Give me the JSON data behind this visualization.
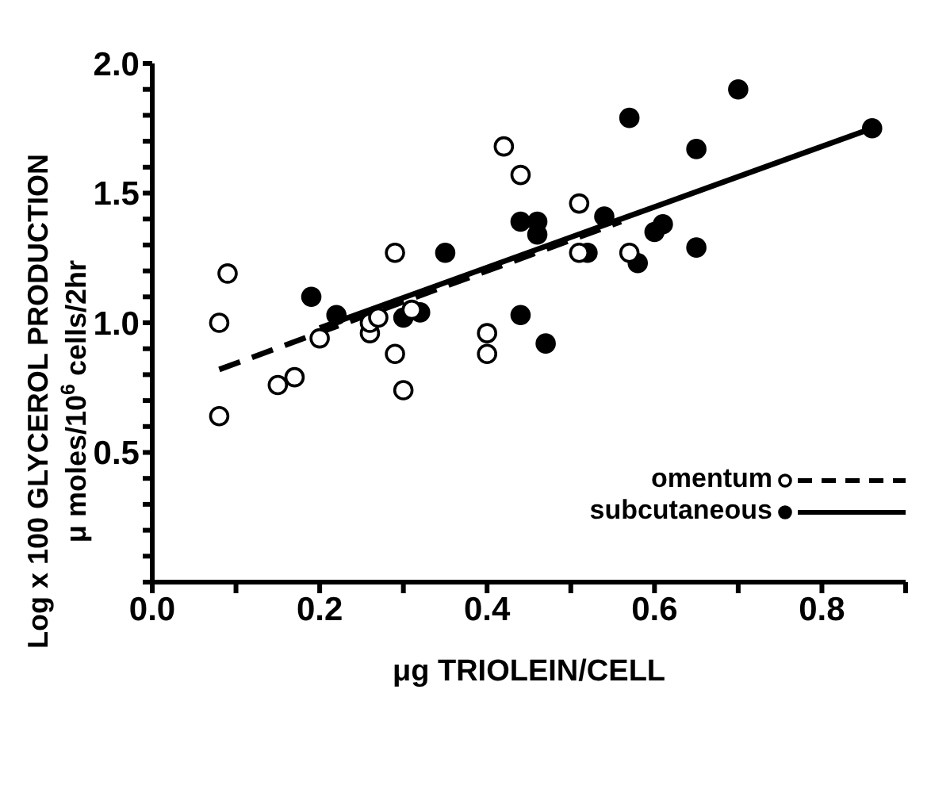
{
  "chart_data": {
    "type": "scatter",
    "xlabel": "μg  TRIOLEIN/CELL",
    "ylabel": "Log x 100  GLYCEROL  PRODUCTION\nμ moles/10$^{6}$ cells/2hr",
    "xlim": [
      0,
      0.9
    ],
    "xticks": [
      {
        "value": 0,
        "label": "0.0"
      },
      {
        "value": 0.1,
        "label": null
      },
      0.2,
      {
        "value": 0.3,
        "label": null
      },
      0.4,
      {
        "value": 0.5,
        "label": null
      },
      0.6,
      {
        "value": 0.7,
        "label": null
      },
      0.8,
      {
        "value": 0.9,
        "label": null
      }
    ],
    "ylim": [
      0,
      2
    ],
    "yticks": [
      {
        "value": 0,
        "label": null
      },
      {
        "value": 0.1,
        "label": null
      },
      {
        "value": 0.2,
        "label": null
      },
      {
        "value": 0.3,
        "label": null
      },
      {
        "value": 0.4,
        "label": null
      },
      0.5,
      {
        "value": 0.6,
        "label": null
      },
      {
        "value": 0.7,
        "label": null
      },
      {
        "value": 0.8,
        "label": null
      },
      {
        "value": 0.9,
        "label": null
      },
      {
        "value": 1,
        "label": "1.0"
      },
      {
        "value": 1.1,
        "label": null
      },
      {
        "value": 1.2,
        "label": null
      },
      {
        "value": 1.3,
        "label": null
      },
      {
        "value": 1.4,
        "label": null
      },
      1.5,
      {
        "value": 1.6,
        "label": null
      },
      {
        "value": 1.7,
        "label": null
      },
      {
        "value": 1.8,
        "label": null
      },
      {
        "value": 1.9,
        "label": null
      },
      {
        "value": 2,
        "label": "2.0"
      }
    ],
    "legend": "bottom right",
    "series": [
      {
        "name": "omentum",
        "marker": "circle",
        "color": "#ffffff",
        "x": [
          0.08,
          0.09,
          0.08,
          0.15,
          0.17,
          0.2,
          0.26,
          0.26,
          0.27,
          0.29,
          0.31,
          0.29,
          0.3,
          0.4,
          0.4,
          0.42,
          0.44,
          0.51,
          0.51,
          0.57
        ],
        "values": [
          1.0,
          1.19,
          0.64,
          0.76,
          0.79,
          0.94,
          0.96,
          1.0,
          1.02,
          1.27,
          1.05,
          0.88,
          0.74,
          0.96,
          0.88,
          1.68,
          1.57,
          1.46,
          1.27,
          1.27
        ]
      },
      {
        "type": "line",
        "line_style": "dashed",
        "color": "#000000",
        "x": [
          0.08,
          0.56
        ],
        "values": [
          0.82,
          1.39
        ]
      },
      {
        "name": "subcutaneous",
        "marker": "circle",
        "color": "#000000",
        "x": [
          0.19,
          0.22,
          0.3,
          0.32,
          0.35,
          0.44,
          0.46,
          0.46,
          0.44,
          0.47,
          0.54,
          0.52,
          0.57,
          0.58,
          0.6,
          0.61,
          0.65,
          0.65,
          0.7,
          0.86
        ],
        "values": [
          1.1,
          1.03,
          1.02,
          1.04,
          1.27,
          1.39,
          1.39,
          1.34,
          1.03,
          0.92,
          1.41,
          1.27,
          1.79,
          1.23,
          1.35,
          1.38,
          1.67,
          1.29,
          1.9,
          1.75
        ]
      },
      {
        "type": "line",
        "line_style": "solid",
        "color": "#000000",
        "x": [
          0.2,
          0.86
        ],
        "values": [
          0.98,
          1.75
        ]
      }
    ]
  }
}
